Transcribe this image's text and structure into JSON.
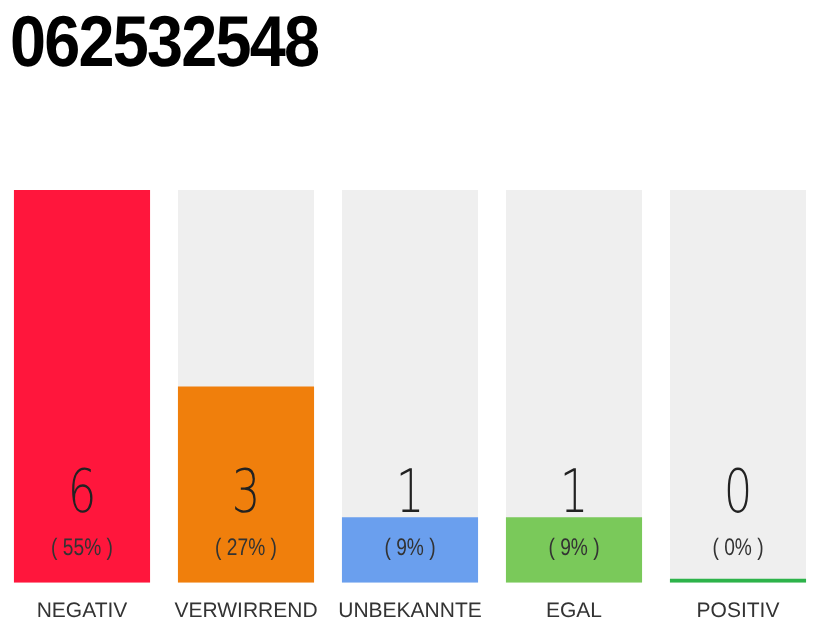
{
  "chart_data": {
    "type": "bar",
    "title": "062532548",
    "categories": [
      "NEGATIV",
      "VERWIRREND",
      "UNBEKANNTE",
      "EGAL",
      "POSITIV"
    ],
    "values": [
      6,
      3,
      1,
      1,
      0
    ],
    "colors": [
      "#ff163c",
      "#f07f0c",
      "#6a9fee",
      "#7ac95a",
      "#2db34a"
    ],
    "value_labels": [
      "6\n( 55% )",
      "3\n( 27% )",
      "1\n( 9% )",
      "1\n( 9% )",
      "0\n( 0% )"
    ],
    "grid": false,
    "legend": false
  }
}
